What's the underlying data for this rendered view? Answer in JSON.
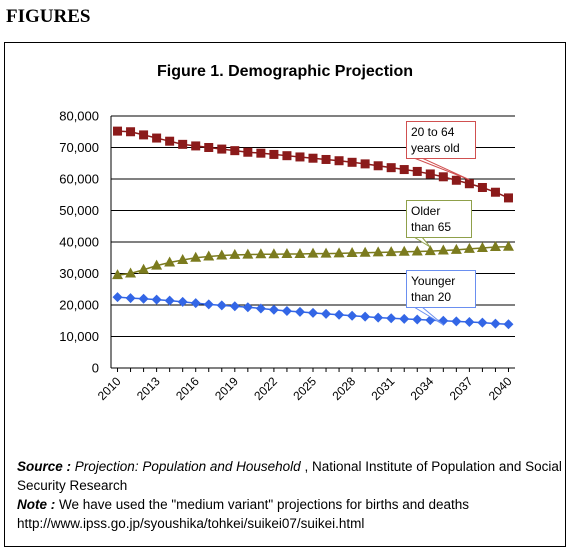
{
  "heading": "FIGURES",
  "source": {
    "label": "Source :",
    "title": "Projection: Population and Household",
    "rest": " , National Institute of Population and Social Security Research"
  },
  "note": {
    "label": "Note :",
    "text": " We have used the \"medium variant\" projections for births and deaths",
    "url": "http://www.ipss.go.jp/syoushika/tohkei/suikei07/suikei.html"
  },
  "chart_data": {
    "type": "line",
    "title": "Figure 1. Demographic Projection",
    "xlabel": "",
    "ylabel": "",
    "ylim": [
      0,
      80000
    ],
    "yticks": [
      "0",
      "10,000",
      "20,000",
      "30,000",
      "40,000",
      "50,000",
      "60,000",
      "70,000",
      "80,000"
    ],
    "xticks": [
      "2010",
      "2013",
      "2016",
      "2019",
      "2022",
      "2025",
      "2028",
      "2031",
      "2034",
      "2037",
      "2040"
    ],
    "x": [
      2010,
      2011,
      2012,
      2013,
      2014,
      2015,
      2016,
      2017,
      2018,
      2019,
      2020,
      2021,
      2022,
      2023,
      2024,
      2025,
      2026,
      2027,
      2028,
      2029,
      2030,
      2031,
      2032,
      2033,
      2034,
      2035,
      2036,
      2037,
      2038,
      2039,
      2040
    ],
    "grid": true,
    "series": [
      {
        "name": "20 to 64 years old",
        "label_lines": [
          "20 to 64",
          "years old"
        ],
        "color": "#8b1a1a",
        "marker": "square",
        "values": [
          75200,
          75000,
          74000,
          73000,
          72000,
          71000,
          70500,
          70000,
          69500,
          69000,
          68500,
          68200,
          67800,
          67400,
          67000,
          66600,
          66200,
          65800,
          65300,
          64800,
          64200,
          63600,
          63000,
          62400,
          61600,
          60700,
          59600,
          58500,
          57300,
          55800,
          54000
        ]
      },
      {
        "name": "Older than 65",
        "label_lines": [
          "Older",
          "than 65"
        ],
        "color": "#7b7b1e",
        "marker": "triangle",
        "values": [
          29500,
          30000,
          31200,
          32500,
          33500,
          34300,
          35000,
          35400,
          35700,
          35900,
          36000,
          36100,
          36100,
          36200,
          36200,
          36300,
          36300,
          36400,
          36500,
          36600,
          36700,
          36800,
          36900,
          37000,
          37100,
          37300,
          37500,
          37800,
          38100,
          38400,
          38500
        ]
      },
      {
        "name": "Younger than 20",
        "label_lines": [
          "Younger",
          "than 20"
        ],
        "color": "#3366e6",
        "marker": "diamond",
        "values": [
          22500,
          22200,
          22000,
          21700,
          21400,
          21000,
          20600,
          20200,
          19900,
          19600,
          19300,
          18900,
          18500,
          18100,
          17800,
          17500,
          17200,
          16900,
          16600,
          16300,
          16000,
          15800,
          15600,
          15400,
          15200,
          15000,
          14800,
          14600,
          14400,
          14100,
          13900
        ]
      }
    ]
  }
}
